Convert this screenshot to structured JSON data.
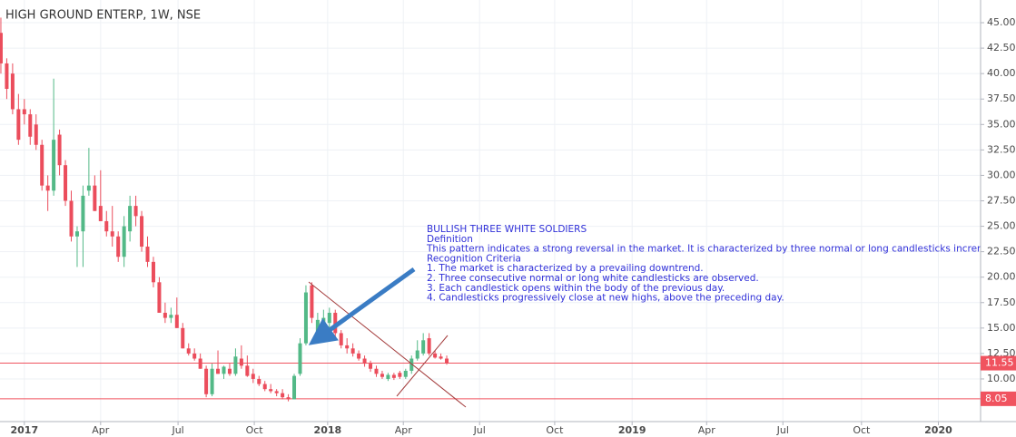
{
  "chart_data": {
    "type": "candlestick",
    "title": "HIGH GROUND ENTERP, 1W, NSE",
    "up_color": "#53b987",
    "down_color": "#eb4d5c",
    "grid": true,
    "ohlc": [
      [
        44,
        45.5,
        40,
        41
      ],
      [
        41,
        41.5,
        37.5,
        38.5
      ],
      [
        40,
        41,
        36,
        36.5
      ],
      [
        36.5,
        38,
        33,
        33.5
      ],
      [
        36.5,
        37.5,
        35,
        36
      ],
      [
        36,
        36.5,
        33,
        33.8
      ],
      [
        35,
        36,
        32.5,
        33
      ],
      [
        33,
        33.5,
        28.5,
        29
      ],
      [
        29,
        30,
        26.5,
        28.5
      ],
      [
        28.5,
        39.5,
        28,
        33.5
      ],
      [
        34,
        34.5,
        30,
        31
      ],
      [
        31,
        31.5,
        27,
        27.5
      ],
      [
        27.5,
        28.5,
        23.5,
        24
      ],
      [
        24,
        25,
        21,
        24.5
      ],
      [
        24.5,
        29,
        21,
        28
      ],
      [
        28.5,
        32.7,
        28,
        29
      ],
      [
        29,
        30,
        26.5,
        26.5
      ],
      [
        27,
        30.5,
        25.5,
        25.5
      ],
      [
        25.5,
        26.5,
        24,
        24.5
      ],
      [
        24.5,
        27,
        23,
        24
      ],
      [
        24,
        24.5,
        21.5,
        22
      ],
      [
        22,
        26,
        21,
        25
      ],
      [
        24.5,
        28,
        23.5,
        27
      ],
      [
        27,
        28,
        25,
        26
      ],
      [
        26,
        26.5,
        22.5,
        23
      ],
      [
        23,
        24,
        21,
        21.5
      ],
      [
        21.5,
        22,
        19,
        19.5
      ],
      [
        19.5,
        20,
        16.5,
        16.5
      ],
      [
        16.5,
        17.5,
        15.5,
        16
      ],
      [
        16,
        17,
        15.5,
        16.3
      ],
      [
        16.3,
        18,
        15,
        15
      ],
      [
        15,
        15.5,
        13,
        13
      ],
      [
        13,
        13.5,
        12.3,
        12.5
      ],
      [
        12.5,
        13,
        11.8,
        12
      ],
      [
        12,
        12.5,
        11,
        11
      ],
      [
        11,
        11.3,
        8.2,
        8.5
      ],
      [
        8.5,
        11.5,
        8.3,
        11
      ],
      [
        11,
        12.8,
        10.5,
        10.5
      ],
      [
        10.5,
        11.3,
        10,
        11.2
      ],
      [
        11,
        11.5,
        10.3,
        10.5
      ],
      [
        10.5,
        13,
        10.3,
        12.2
      ],
      [
        12,
        13.3,
        11,
        11.3
      ],
      [
        11.3,
        12.3,
        10.2,
        10.3
      ],
      [
        10.5,
        11,
        9.6,
        10
      ],
      [
        10,
        10.3,
        9.3,
        9.5
      ],
      [
        9.5,
        9.8,
        8.8,
        9
      ],
      [
        9,
        9.5,
        8.6,
        8.8
      ],
      [
        8.8,
        9,
        8.3,
        8.6
      ],
      [
        8.6,
        9,
        8.0,
        8.2
      ],
      [
        8.2,
        8.5,
        7.8,
        8.0
      ],
      [
        8.0,
        10.5,
        8.0,
        10.3
      ],
      [
        10.5,
        14,
        10.3,
        13.5
      ],
      [
        13.5,
        19.2,
        13.3,
        18.5
      ],
      [
        19.2,
        19.5,
        15.5,
        16
      ],
      [
        14.5,
        16.5,
        14,
        15.8
      ],
      [
        15,
        16.8,
        14.5,
        16
      ],
      [
        15.5,
        17,
        15,
        16.5
      ],
      [
        16.5,
        16.8,
        14,
        14.5
      ],
      [
        14.5,
        14.8,
        13,
        13.3
      ],
      [
        13.3,
        14,
        12.5,
        13
      ],
      [
        13,
        13.5,
        12.2,
        12.5
      ],
      [
        12.5,
        12.8,
        11.8,
        12
      ],
      [
        12,
        12.3,
        11.2,
        11.5
      ],
      [
        11.5,
        11.8,
        10.7,
        11
      ],
      [
        11,
        11.3,
        10.2,
        10.5
      ],
      [
        10.5,
        10.8,
        10,
        10.2
      ],
      [
        10,
        10.6,
        9.8,
        10.4
      ],
      [
        10.4,
        10.6,
        9.9,
        10.1
      ],
      [
        10.6,
        10.8,
        10,
        10.2
      ],
      [
        10.2,
        11,
        10,
        10.8
      ],
      [
        10.8,
        12.3,
        10.5,
        12
      ],
      [
        12,
        13.8,
        11.8,
        12.8
      ],
      [
        12.5,
        14.5,
        12.3,
        13.8
      ],
      [
        14,
        14.5,
        12.3,
        12.5
      ],
      [
        12.5,
        12.8,
        12,
        12.1
      ],
      [
        12.2,
        12.5,
        11.9,
        12
      ],
      [
        12,
        12.3,
        11.4,
        11.55
      ]
    ],
    "xlim": [
      -0.15,
      167
    ],
    "xticks": [
      {
        "value": 4.0,
        "label": "2017"
      },
      {
        "value": 17.0,
        "label": "Apr"
      },
      {
        "value": 30.2,
        "label": "Jul"
      },
      {
        "value": 43.2,
        "label": "Oct"
      },
      {
        "value": 55.7,
        "label": "2018"
      },
      {
        "value": 68.6,
        "label": "Apr"
      },
      {
        "value": 81.6,
        "label": "Jul"
      },
      {
        "value": 94.4,
        "label": "Oct"
      },
      {
        "value": 107.6,
        "label": "2019"
      },
      {
        "value": 120.3,
        "label": "Apr"
      },
      {
        "value": 133.3,
        "label": "Jul"
      },
      {
        "value": 146.7,
        "label": "Oct"
      },
      {
        "value": 159.8,
        "label": "2020"
      }
    ],
    "ylim": [
      5.81,
      47.23
    ],
    "yticks": [
      {
        "value": 10,
        "label": "10.00"
      },
      {
        "value": 12.5,
        "label": "12.50"
      },
      {
        "value": 15,
        "label": "15.00"
      },
      {
        "value": 17.5,
        "label": "17.50"
      },
      {
        "value": 20,
        "label": "20.00"
      },
      {
        "value": 22.5,
        "label": "22.50"
      },
      {
        "value": 25,
        "label": "25.00"
      },
      {
        "value": 27.5,
        "label": "27.50"
      },
      {
        "value": 30,
        "label": "30.00"
      },
      {
        "value": 32.5,
        "label": "32.50"
      },
      {
        "value": 35,
        "label": "35.00"
      },
      {
        "value": 37.5,
        "label": "37.50"
      },
      {
        "value": 40,
        "label": "40.00"
      },
      {
        "value": 42.5,
        "label": "42.50"
      },
      {
        "value": 45,
        "label": "45.00"
      }
    ],
    "price_lines": [
      11.55,
      8.05
    ],
    "price_line_color": "#f0535f",
    "annotation": [
      "BULLISH THREE WHITE SOLDIERS",
      "Definition",
      "This pattern indicates a strong reversal in the market. It is characterized by three normal or long candlesticks incrementi",
      "Recognition Criteria",
      "1. The market is characterized by a prevailing downtrend.",
      "2. Three consecutive normal or long white candlesticks are observed.",
      "3. Each candlestick opens within the body of the previous day.",
      "4. Candlesticks progressively close at new highs, above the preceding day."
    ]
  }
}
